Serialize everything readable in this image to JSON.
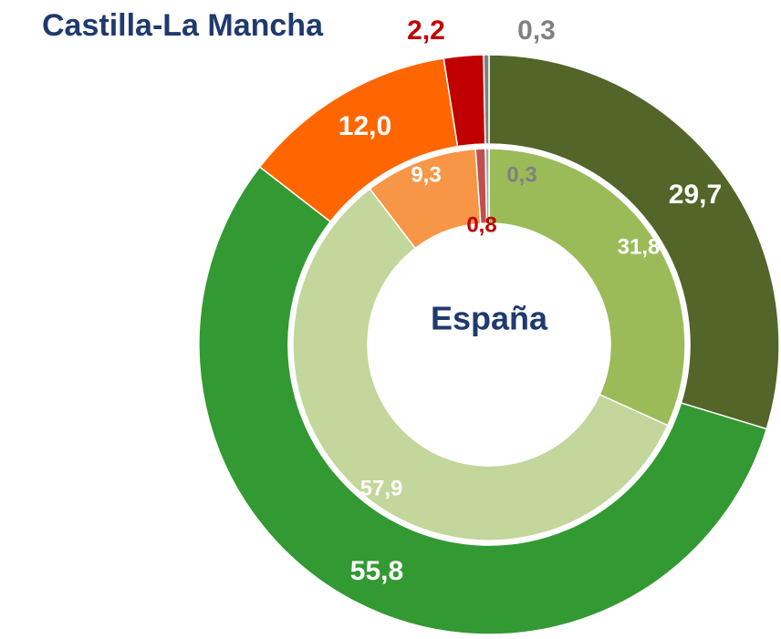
{
  "chart_data": {
    "type": "donut",
    "series": [
      {
        "name": "Castilla-La Mancha",
        "colors": [
          "#536529",
          "#339933",
          "#ff6600",
          "#c00000",
          "#808080"
        ],
        "values": [
          29.7,
          55.8,
          12.0,
          2.2,
          0.3
        ],
        "value_labels": [
          "29,7",
          "55,8",
          "12,0",
          "2,2",
          "0,3"
        ]
      },
      {
        "name": "España",
        "colors": [
          "#9bbb59",
          "#c3d69b",
          "#f79646",
          "#c0504d",
          "#a6a6a6"
        ],
        "values": [
          31.8,
          57.9,
          9.3,
          0.8,
          0.3
        ],
        "value_labels": [
          "31,8",
          "57,9",
          "9,3",
          "0,8",
          "0,3"
        ]
      }
    ]
  }
}
